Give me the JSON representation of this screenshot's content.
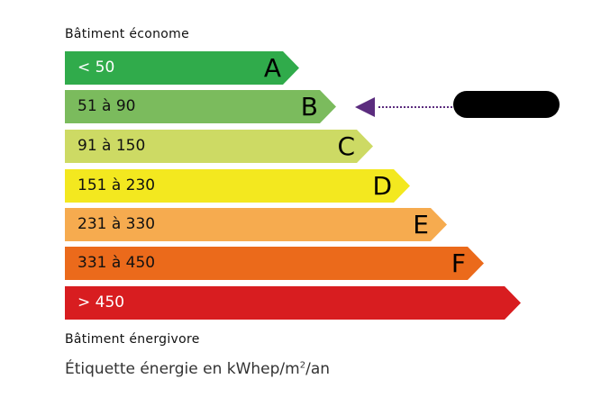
{
  "header": {
    "top_label": "Bâtiment économe",
    "bottom_label": "Bâtiment énergivore"
  },
  "classes": [
    {
      "letter": "A",
      "range": "< 50",
      "color": "#30ab4b",
      "text_color": "#ffffff"
    },
    {
      "letter": "B",
      "range": "51 à 90",
      "color": "#7bbb5d",
      "text_color": "#111111"
    },
    {
      "letter": "C",
      "range": "91 à 150",
      "color": "#cdda64",
      "text_color": "#111111"
    },
    {
      "letter": "D",
      "range": "151 à 230",
      "color": "#f3e81f",
      "text_color": "#111111"
    },
    {
      "letter": "E",
      "range": "231 à 330",
      "color": "#f6ab4f",
      "text_color": "#111111"
    },
    {
      "letter": "F",
      "range": "331 à 450",
      "color": "#eb6a1b",
      "text_color": "#111111"
    },
    {
      "letter": "",
      "range": "> 450",
      "color": "#d81d20",
      "text_color": "#ffffff"
    }
  ],
  "indicator": {
    "selected_class": "B",
    "color": "#5b2c7e",
    "value_redacted": true
  },
  "footer": {
    "caption_main": "Étiquette énergie en kWhep/m",
    "caption_sup": "2",
    "caption_end": "/an"
  }
}
